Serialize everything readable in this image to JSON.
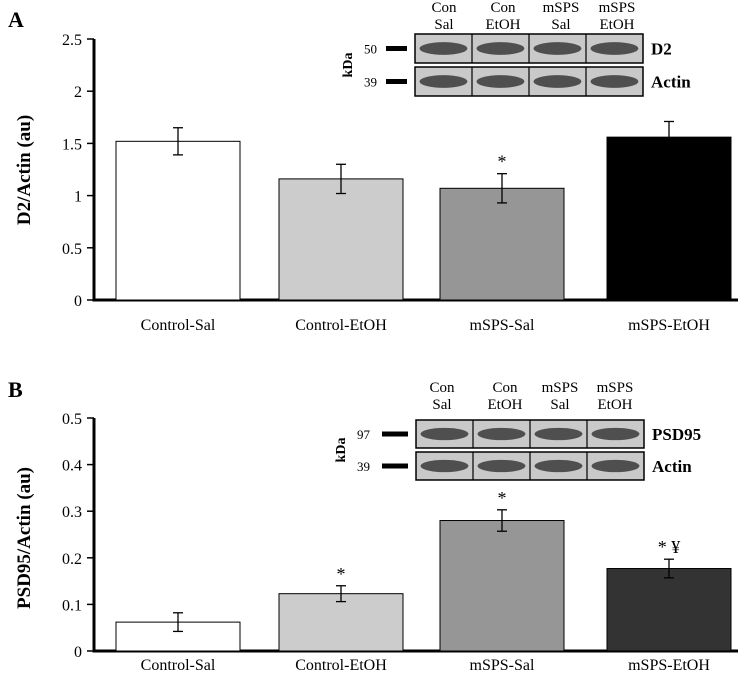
{
  "chart_data": [
    {
      "panel_letter": "A",
      "type": "bar",
      "ylabel": "D2/Actin (au)",
      "xlabel": "",
      "ylim": [
        0,
        2.5
      ],
      "yticks": [
        "0",
        "0.5",
        "1",
        "1.5",
        "2",
        "2.5"
      ],
      "ytick_values": [
        0,
        0.5,
        1,
        1.5,
        2,
        2.5
      ],
      "categories": [
        "Control-Sal",
        "Control-EtOH",
        "mSPS-Sal",
        "mSPS-EtOH"
      ],
      "values": [
        1.52,
        1.16,
        1.07,
        1.56
      ],
      "errors": [
        0.13,
        0.14,
        0.14,
        0.15
      ],
      "bar_colors": [
        "#ffffff",
        "#cccccc",
        "#969696",
        "#000000"
      ],
      "annotations": [
        "",
        "",
        "*",
        ""
      ],
      "grid": false,
      "blot": {
        "columns": [
          "Con\nSal",
          "Con\nEtOH",
          "mSPS\nSal",
          "mSPS\nEtOH"
        ],
        "unit": "kDa",
        "rows": [
          {
            "marker": "50",
            "label": "D2"
          },
          {
            "marker": "39",
            "label": "Actin"
          }
        ]
      }
    },
    {
      "panel_letter": "B",
      "type": "bar",
      "ylabel": "PSD95/Actin (au)",
      "xlabel": "",
      "ylim": [
        0,
        0.5
      ],
      "yticks": [
        "0",
        "0.1",
        "0.2",
        "0.3",
        "0.4",
        "0.5"
      ],
      "ytick_values": [
        0,
        0.1,
        0.2,
        0.3,
        0.4,
        0.5
      ],
      "categories": [
        "Control-Sal",
        "Control-EtOH",
        "mSPS-Sal",
        "mSPS-EtOH"
      ],
      "values": [
        0.062,
        0.123,
        0.28,
        0.177
      ],
      "errors": [
        0.02,
        0.017,
        0.023,
        0.02
      ],
      "bar_colors": [
        "#ffffff",
        "#cccccc",
        "#969696",
        "#333333"
      ],
      "annotations": [
        "",
        "*",
        "*",
        "* ¥"
      ],
      "grid": false,
      "blot": {
        "columns": [
          "Con\nSal",
          "Con\nEtOH",
          "mSPS\nSal",
          "mSPS\nEtOH"
        ],
        "unit": "kDa",
        "rows": [
          {
            "marker": "97",
            "label": "PSD95"
          },
          {
            "marker": "39",
            "label": "Actin"
          }
        ]
      }
    }
  ]
}
